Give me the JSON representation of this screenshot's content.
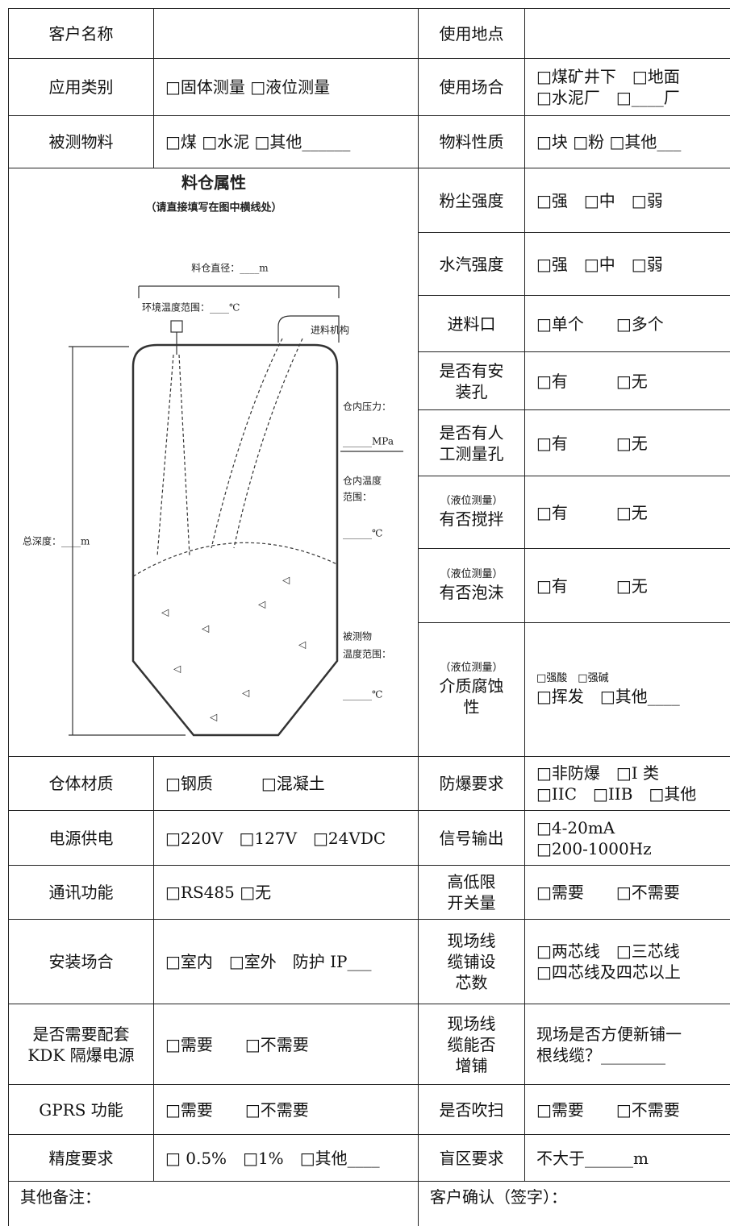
{
  "table": {
    "top_rows": [
      [
        [
          "客户名称"
        ],
        [],
        [
          "使用地点"
        ],
        []
      ],
      [
        [
          "应用类别"
        ],
        [
          "□固体测量 □液位测量"
        ],
        [
          "使用场合"
        ],
        [
          "□煤矿井下　□地面",
          "□水泥厂　□____厂"
        ]
      ],
      [
        [
          "被测物料"
        ],
        [
          "□煤 □水泥 □其他______"
        ],
        [
          "物料性质"
        ],
        [
          "□块 □粉 □其他___"
        ]
      ]
    ],
    "side_rows": [
      [
        [
          "粉尘强度"
        ],
        [
          "□强　□中　□弱"
        ]
      ],
      [
        [
          "水汽强度"
        ],
        [
          "□强　□中　□弱"
        ]
      ],
      [
        [
          "进料口"
        ],
        [
          "□单个　　□多个"
        ]
      ],
      [
        [
          "是否有安",
          "装孔"
        ],
        [
          "□有　　　□无"
        ]
      ],
      [
        [
          "是否有人",
          "工测量孔"
        ],
        [
          "□有　　　□无"
        ]
      ],
      [
        [
          "（液位测量）",
          "有否搅拌"
        ],
        [
          "□有　　　□无"
        ]
      ],
      [
        [
          "（液位测量）",
          "有否泡沫"
        ],
        [
          "□有　　　□无"
        ]
      ],
      [
        [
          "（液位测量）",
          "介质腐蚀",
          "性"
        ],
        [
          "□强酸　□强碱",
          "□挥发　□其他____"
        ]
      ]
    ],
    "bottom_rows": [
      [
        [
          "仓体材质"
        ],
        [
          "□钢质　　　□混凝土"
        ],
        [
          "防爆要求"
        ],
        [
          "□非防爆　□I 类",
          "□IIC　□IIB　□其他"
        ]
      ],
      [
        [
          "电源供电"
        ],
        [
          "□220V　□127V　□24VDC"
        ],
        [
          "信号输出"
        ],
        [
          "□4-20mA",
          "□200-1000Hz"
        ]
      ],
      [
        [
          "通讯功能"
        ],
        [
          "□RS485 □无"
        ],
        [
          "高低限",
          "开关量"
        ],
        [
          "□需要　　□不需要"
        ]
      ],
      [
        [
          "安装场合"
        ],
        [
          "□室内　□室外　防护 IP___"
        ],
        [
          "现场线",
          "缆铺设",
          "芯数"
        ],
        [
          "□两芯线　□三芯线",
          "□四芯线及四芯以上"
        ]
      ],
      [
        [
          "是否需要配套",
          "KDK 隔爆电源"
        ],
        [
          "□需要　　□不需要"
        ],
        [
          "现场线",
          "缆能否",
          "增铺"
        ],
        [
          "现场是否方便新铺一",
          "根线缆？________"
        ]
      ],
      [
        [
          "GPRS 功能"
        ],
        [
          "□需要　　□不需要"
        ],
        [
          "是否吹扫"
        ],
        [
          "□需要　　□不需要"
        ]
      ],
      [
        [
          "精度要求"
        ],
        [
          "□ 0.5%　□1%　□其他____"
        ],
        [
          "盲区要求"
        ],
        [
          "不大于______m"
        ]
      ]
    ],
    "footer": [
      "其他备注：",
      "客户确认（签字）："
    ]
  },
  "diagram": {
    "title": "料仓属性",
    "subtitle": "（请直接填写在图中横线处）",
    "diameter": "料仓直径：____m",
    "ambient_temp": "环境温度范围：____℃",
    "feeder": "进料机构",
    "pressure": "仓内压力：",
    "pressure_blank": "______MPa",
    "inner_temp": [
      "仓内温度",
      "范围："
    ],
    "inner_temp_blank": "______℃",
    "depth": "总深度：____m",
    "material_temp": [
      "被测物",
      "温度范围："
    ],
    "material_temp_blank": "______℃"
  }
}
